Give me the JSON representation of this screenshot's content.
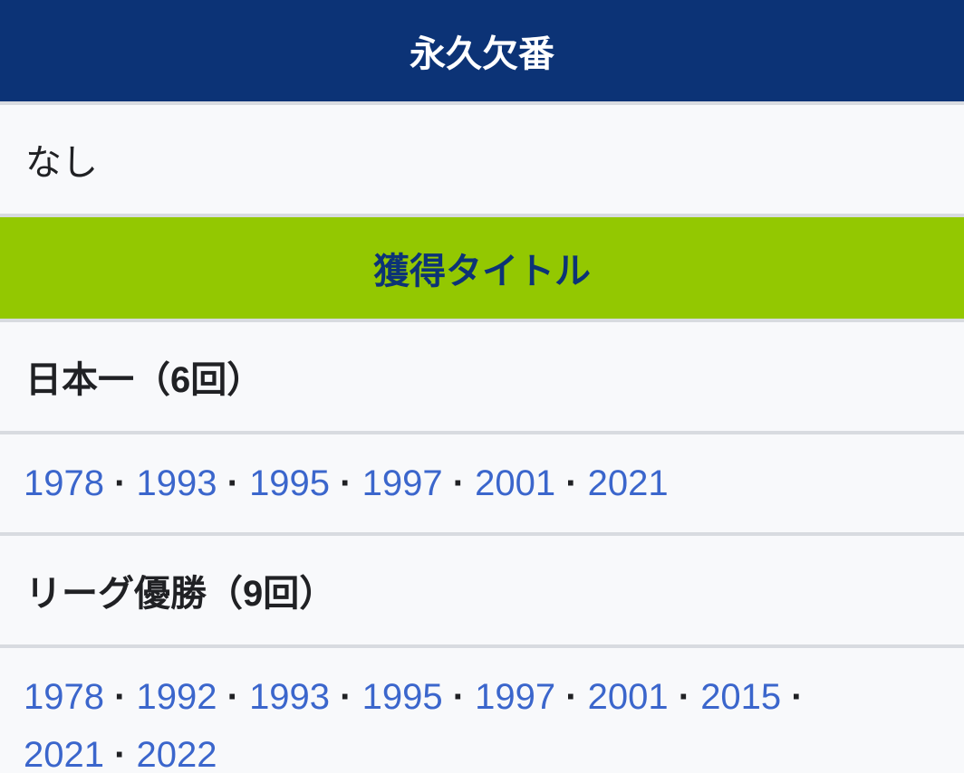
{
  "colors": {
    "navy": "#0c3376",
    "green": "#93c801",
    "row_background": "#f8f9fb",
    "divider": "#d8dbe0",
    "text": "#202124",
    "link": "#3b66cc"
  },
  "separator": "·",
  "sections": {
    "retired_numbers": {
      "header": "永久欠番",
      "value": "なし"
    },
    "titles": {
      "header": "獲得タイトル",
      "groups": [
        {
          "label": "日本一（6回）",
          "years": [
            "1978",
            "1993",
            "1995",
            "1997",
            "2001",
            "2021"
          ]
        },
        {
          "label": "リーグ優勝（9回）",
          "years": [
            "1978",
            "1992",
            "1993",
            "1995",
            "1997",
            "2001",
            "2015",
            "2021",
            "2022"
          ]
        }
      ]
    }
  }
}
